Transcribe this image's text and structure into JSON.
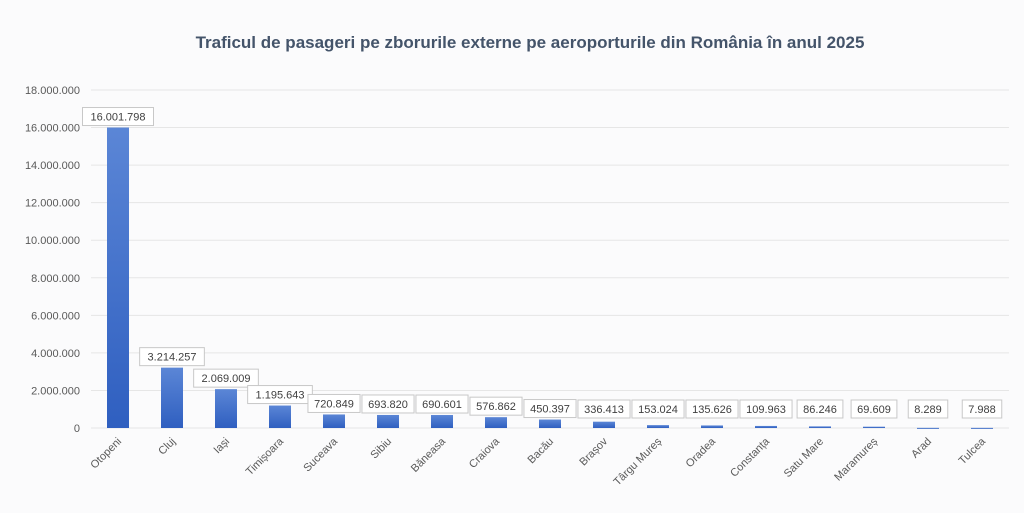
{
  "chart_data": {
    "type": "bar",
    "title": "Traficul de pasageri pe zborurile externe pe aeroporturile din România în anul 2025",
    "xlabel": "",
    "ylabel": "",
    "ylim": [
      0,
      18000000
    ],
    "y_ticks": [
      "0",
      "2.000.000",
      "4.000.000",
      "6.000.000",
      "8.000.000",
      "10.000.000",
      "12.000.000",
      "14.000.000",
      "16.000.000",
      "18.000.000"
    ],
    "grid": true,
    "legend": "none",
    "bar_color": "#3a68c8",
    "categories": [
      "Otopeni",
      "Cluj",
      "Iași",
      "Timișoara",
      "Suceava",
      "Sibiu",
      "Băneasa",
      "Craiova",
      "Bacău",
      "Brașov",
      "Târgu Mureș",
      "Oradea",
      "Constanța",
      "Satu Mare",
      "Maramureș",
      "Arad",
      "Tulcea"
    ],
    "values": [
      16001798,
      3214257,
      2069009,
      1195643,
      720849,
      693820,
      690601,
      576862,
      450397,
      336413,
      153024,
      135626,
      109963,
      86246,
      69609,
      8289,
      7988
    ],
    "data_labels": [
      "16.001.798",
      "3.214.257",
      "2.069.009",
      "1.195.643",
      "720.849",
      "693.820",
      "690.601",
      "576.862",
      "450.397",
      "336.413",
      "153.024",
      "135.626",
      "109.963",
      "86.246",
      "69.609",
      "8.289",
      "7.988"
    ]
  }
}
